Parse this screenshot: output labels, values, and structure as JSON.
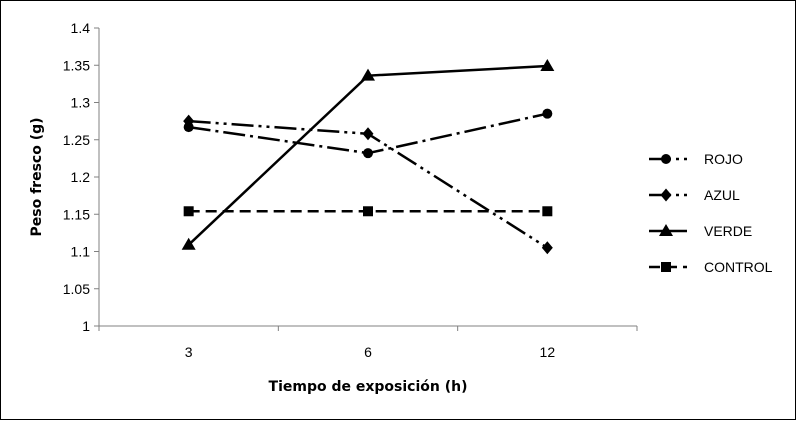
{
  "chart_data": {
    "type": "line",
    "title": "",
    "xlabel": "Tiempo de exposición (h)",
    "ylabel": "Peso fresco (g)",
    "categories": [
      "3",
      "6",
      "12"
    ],
    "ylim": [
      1,
      1.4
    ],
    "yticks": [
      "1",
      "1.05",
      "1.1",
      "1.15",
      "1.2",
      "1.25",
      "1.3",
      "1.35",
      "1.4"
    ],
    "grid": false,
    "legend_position": "right",
    "series": [
      {
        "name": "ROJO",
        "values": [
          1.267,
          1.232,
          1.285
        ],
        "marker": "circle",
        "dash": "long-dash-dot",
        "color": "#000000"
      },
      {
        "name": "AZUL",
        "values": [
          1.275,
          1.258,
          1.105
        ],
        "marker": "diamond",
        "dash": "long-dash-dot-dot",
        "color": "#000000"
      },
      {
        "name": "VERDE",
        "values": [
          1.109,
          1.336,
          1.349
        ],
        "marker": "triangle",
        "dash": "solid",
        "color": "#000000"
      },
      {
        "name": "CONTROL",
        "values": [
          1.154,
          1.154,
          1.154
        ],
        "marker": "square",
        "dash": "dashed",
        "color": "#000000"
      }
    ]
  }
}
